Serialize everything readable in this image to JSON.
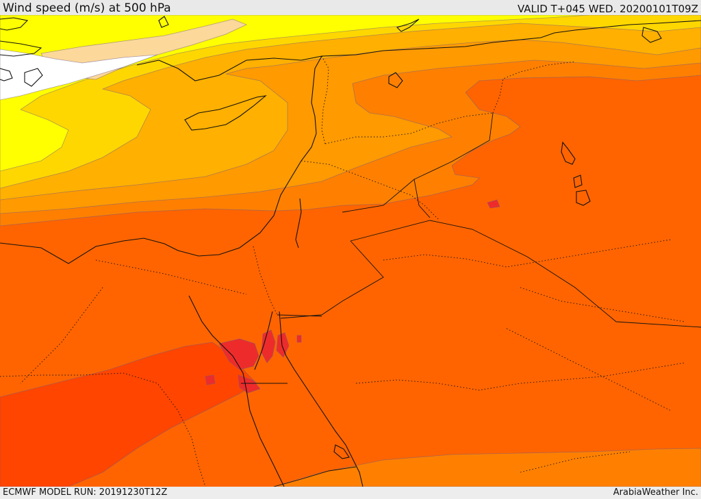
{
  "header": {
    "title": "Wind speed (m/s) at 500 hPa",
    "valid": "VALID T+045 WED. 20200101T09Z"
  },
  "footer": {
    "model_run": "ECMWF MODEL RUN: 20191230T12Z",
    "credit": "ArabiaWeather Inc."
  },
  "colors": {
    "band_white": "#ffffff",
    "band_peach": "#fcd89a",
    "band_yellow": "#ffff00",
    "band_gold": "#ffd700",
    "band_amber": "#ffb000",
    "band_orange": "#ff9a00",
    "band_darkorange": "#ff8000",
    "band_redorange": "#ff6400",
    "band_red": "#ff4500",
    "band_crimson": "#ee2b2b"
  }
}
